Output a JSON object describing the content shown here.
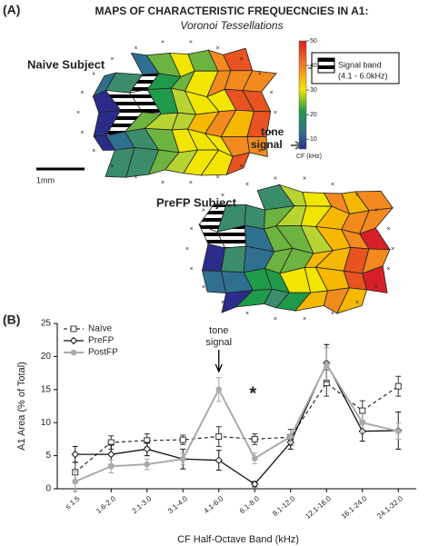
{
  "panel_a": {
    "label": "(A)",
    "title": "MAPS OF CHARACTERISTIC FREQUECNCIES IN A1:",
    "subtitle": "Voronoi Tessellations",
    "naive_label": "Naive  Subject",
    "prefp_label": "PreFP Subject",
    "tone_signal": [
      "tone",
      "signal"
    ],
    "signal_band": [
      "Signal band",
      "(4.1 - 6.0kHz)"
    ],
    "scale_bar": "1mm",
    "colorbar": {
      "label": "CF (kHz)",
      "lim": [
        6,
        50
      ],
      "ticks": [
        50,
        40,
        30,
        20,
        10
      ]
    }
  },
  "chart_data": {
    "type": "line",
    "label": "(B)",
    "xlabel": "CF Half-Octave Band (kHz)",
    "ylabel": "A1 Area (% of Total)",
    "categories": [
      "≤ 1.5",
      "1.6-2.0",
      "2.1-3.0",
      "3.1-4.0",
      "4.1-6.0",
      "6.1-8.0",
      "8.1-12.0",
      "12.1-16.0",
      "16.1-24.0",
      "24.1-32.0"
    ],
    "ylim": [
      0,
      25
    ],
    "yticks": [
      0,
      5,
      10,
      15,
      20,
      25
    ],
    "annotations": [
      "tone",
      "signal",
      "*"
    ],
    "series": [
      {
        "name": "Naïve",
        "color": "#333333",
        "dash": true,
        "marker": "square",
        "values": [
          2.5,
          7,
          7.3,
          7.4,
          7.9,
          7.5,
          7.8,
          16,
          11.8,
          15.5
        ],
        "errors": [
          1.5,
          1,
          1,
          0.7,
          1.5,
          0.8,
          1.2,
          2,
          1.5,
          1.5
        ]
      },
      {
        "name": "PreFP",
        "color": "#111111",
        "dash": false,
        "marker": "diamond",
        "values": [
          5.2,
          5.2,
          6,
          4.5,
          4.3,
          0.7,
          7,
          19,
          8.7,
          8.8
        ],
        "errors": [
          1.2,
          1.5,
          1,
          1.5,
          1.5,
          0.4,
          1,
          2.8,
          1.5,
          2.8
        ]
      },
      {
        "name": "PostFP",
        "color": "#aaaaaa",
        "dash": false,
        "marker": "circle",
        "values": [
          1.1,
          3.4,
          3.7,
          4.5,
          15,
          4.6,
          7.9,
          18.8,
          10,
          8.7
        ],
        "errors": [
          1.5,
          1,
          0.8,
          0.8,
          1.8,
          0.8,
          1,
          2.5,
          1.5,
          1.2
        ]
      }
    ]
  }
}
